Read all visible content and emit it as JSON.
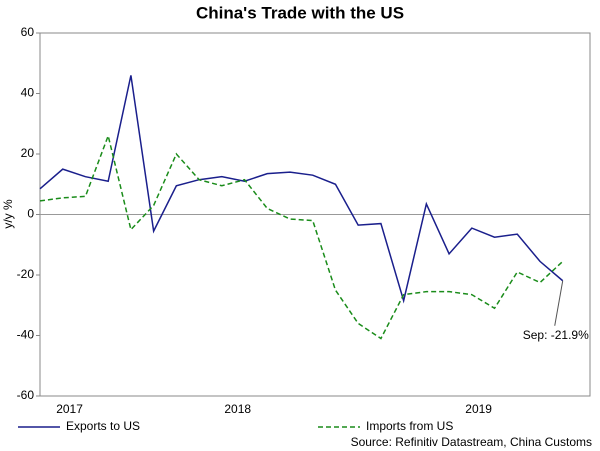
{
  "chart_data": {
    "type": "line",
    "title": "China's Trade with the US",
    "y_label": "y/y %",
    "source": "Source: Refinitiv Datastream, China Customs",
    "annotation": "Sep: -21.9%",
    "x": [
      0,
      1,
      2,
      3,
      4,
      5,
      6,
      7,
      8,
      9,
      10,
      11,
      12,
      13,
      14,
      15,
      16,
      17,
      18,
      19,
      20,
      21,
      22,
      23
    ],
    "xlim": [
      0,
      24.2
    ],
    "xticks": [
      {
        "value": 1.3,
        "label": "2017"
      },
      {
        "value": 8.7,
        "label": "2018"
      },
      {
        "value": 19.3,
        "label": "2019"
      }
    ],
    "ylim": [
      -60,
      60
    ],
    "yticks": [
      -60,
      -40,
      -20,
      0,
      20,
      40,
      60
    ],
    "series": [
      {
        "name": "Exports to US",
        "color": "#1a1f8c",
        "dash": false,
        "values": [
          8.5,
          15,
          12.5,
          11,
          46,
          -5.5,
          9.5,
          11.5,
          12.5,
          11,
          13.5,
          14,
          13,
          10,
          -3.5,
          -3,
          -28.5,
          3.5,
          -13,
          -4.5,
          -7.5,
          -6.5,
          -15.5,
          -21.9
        ]
      },
      {
        "name": "Imports from US",
        "color": "#1a8c1a",
        "dash": true,
        "values": [
          4.5,
          5.5,
          6,
          26,
          -5,
          3,
          20,
          11.5,
          9.5,
          11.5,
          2,
          -1.5,
          -2,
          -25,
          -36,
          -41,
          -26.5,
          -25.5,
          -25.5,
          -26.5,
          -31,
          -19,
          -22.5,
          -15.5
        ]
      }
    ]
  }
}
